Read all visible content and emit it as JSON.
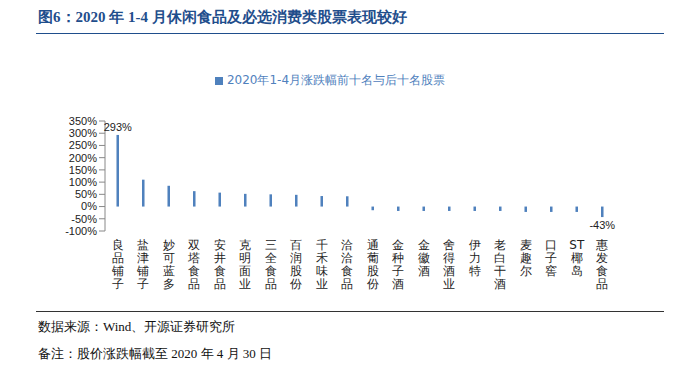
{
  "chart_data": {
    "type": "bar",
    "title": "图6：2020 年 1-4 月休闲食品及必选消费类股票表现较好",
    "categories": [
      "良品铺子",
      "盐津铺子",
      "妙可蓝多",
      "双塔食品",
      "安井食品",
      "克明面业",
      "三全食品",
      "百润股份",
      "千禾味业",
      "洽洽食品",
      "通葡股份",
      "金种子酒",
      "金徽酒",
      "舍得酒业",
      "伊力特",
      "老白干酒",
      "麦趣尔",
      "口子窖",
      "ST椰岛",
      "惠发食品"
    ],
    "series": [
      {
        "name": "2020年1-4月涨跌幅前十名与后十名股票",
        "color": "#4f81bd",
        "values": [
          293,
          110,
          85,
          63,
          57,
          52,
          50,
          48,
          43,
          42,
          -15,
          -18,
          -18,
          -18,
          -18,
          -18,
          -22,
          -22,
          -22,
          -43
        ],
        "value_labels": [
          "293%",
          null,
          null,
          null,
          null,
          null,
          null,
          null,
          null,
          null,
          null,
          null,
          null,
          null,
          null,
          null,
          null,
          null,
          null,
          "-43%"
        ]
      }
    ],
    "ylim": [
      -100,
      350
    ],
    "yticks": [
      {
        "value": -100,
        "label": "-100%"
      },
      {
        "value": -50,
        "label": "-50%"
      },
      {
        "value": 0,
        "label": "0%"
      },
      {
        "value": 50,
        "label": "50%"
      },
      {
        "value": 100,
        "label": "100%"
      },
      {
        "value": 150,
        "label": "150%"
      },
      {
        "value": 200,
        "label": "200%"
      },
      {
        "value": 250,
        "label": "250%"
      },
      {
        "value": 300,
        "label": "300%"
      },
      {
        "value": 350,
        "label": "350%"
      }
    ],
    "grid": false,
    "legend": "top",
    "data_labels": true,
    "source": "数据来源：Wind、开源证券研究所",
    "note": "备注：股价涨跌幅截至 2020 年 4 月 30 日"
  }
}
